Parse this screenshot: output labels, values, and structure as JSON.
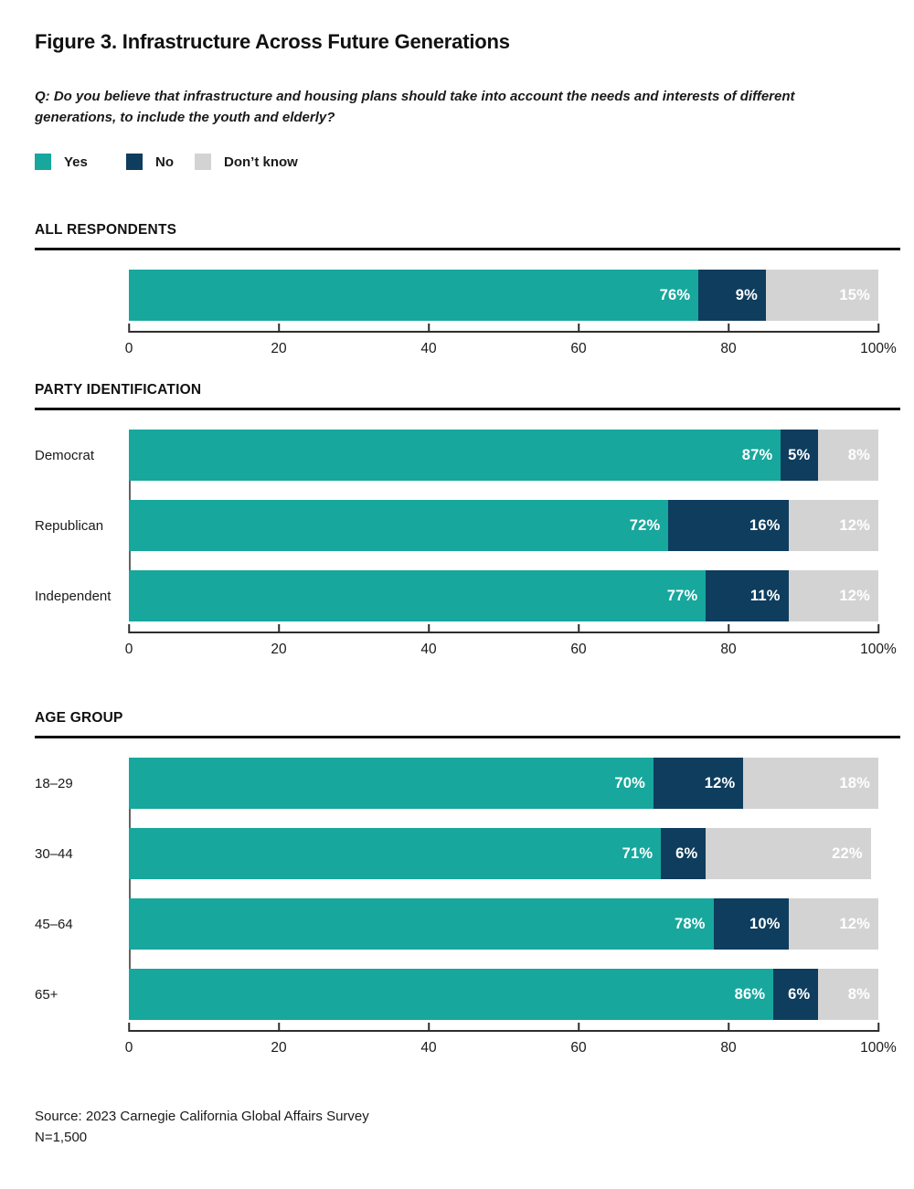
{
  "title": "Figure 3. Infrastructure Across Future Generations",
  "question": "Q: Do you believe that infrastructure and housing plans should take into account the needs and interests of different generations, to include the youth and elderly?",
  "colors": {
    "yes": "#17a79d",
    "no": "#0e3d5e",
    "dont_know": "#d3d3d3",
    "label_text": "#ffffff",
    "rule": "#111111",
    "baseline": "#2e2e2e",
    "axis_vline": "#636363"
  },
  "legend": {
    "items": [
      {
        "label": "Yes",
        "color_key": "yes"
      },
      {
        "label": "No",
        "color_key": "no"
      },
      {
        "label": "Don’t know",
        "color_key": "dont_know"
      }
    ]
  },
  "chart_data": [
    {
      "type": "bar",
      "orientation": "horizontal",
      "stacked": true,
      "title": "ALL RESPONDENTS",
      "categories": [
        ""
      ],
      "series": [
        {
          "name": "Yes",
          "color_key": "yes",
          "values": [
            76
          ]
        },
        {
          "name": "No",
          "color_key": "no",
          "values": [
            9
          ]
        },
        {
          "name": "Don’t know",
          "color_key": "dont_know",
          "values": [
            15
          ]
        }
      ],
      "xlim": [
        0,
        100
      ],
      "ticks": [
        {
          "pos": 0,
          "label": "0"
        },
        {
          "pos": 20,
          "label": "20"
        },
        {
          "pos": 40,
          "label": "40"
        },
        {
          "pos": 60,
          "label": "60"
        },
        {
          "pos": 80,
          "label": "80"
        },
        {
          "pos": 100,
          "label": "100%"
        }
      ],
      "grid": false,
      "value_suffix": "%"
    },
    {
      "type": "bar",
      "orientation": "horizontal",
      "stacked": true,
      "title": "PARTY IDENTIFICATION",
      "categories": [
        "Democrat",
        "Republican",
        "Independent"
      ],
      "series": [
        {
          "name": "Yes",
          "color_key": "yes",
          "values": [
            87,
            72,
            77
          ]
        },
        {
          "name": "No",
          "color_key": "no",
          "values": [
            5,
            16,
            11
          ]
        },
        {
          "name": "Don’t know",
          "color_key": "dont_know",
          "values": [
            8,
            12,
            12
          ]
        }
      ],
      "xlim": [
        0,
        100
      ],
      "ticks": [
        {
          "pos": 0,
          "label": "0"
        },
        {
          "pos": 20,
          "label": "20"
        },
        {
          "pos": 40,
          "label": "40"
        },
        {
          "pos": 60,
          "label": "60"
        },
        {
          "pos": 80,
          "label": "80"
        },
        {
          "pos": 100,
          "label": "100%"
        }
      ],
      "grid": false,
      "value_suffix": "%"
    },
    {
      "type": "bar",
      "orientation": "horizontal",
      "stacked": true,
      "title": "AGE GROUP",
      "categories": [
        "18–29",
        "30–44",
        "45–64",
        "65+"
      ],
      "series": [
        {
          "name": "Yes",
          "color_key": "yes",
          "values": [
            70,
            71,
            78,
            86
          ]
        },
        {
          "name": "No",
          "color_key": "no",
          "values": [
            12,
            6,
            10,
            6
          ]
        },
        {
          "name": "Don’t know",
          "color_key": "dont_know",
          "values": [
            18,
            22,
            12,
            8
          ]
        }
      ],
      "xlim": [
        0,
        100
      ],
      "ticks": [
        {
          "pos": 0,
          "label": "0"
        },
        {
          "pos": 20,
          "label": "20"
        },
        {
          "pos": 40,
          "label": "40"
        },
        {
          "pos": 60,
          "label": "60"
        },
        {
          "pos": 80,
          "label": "80"
        },
        {
          "pos": 100,
          "label": "100%"
        }
      ],
      "grid": false,
      "value_suffix": "%"
    }
  ],
  "source": {
    "line1": "Source: 2023 Carnegie California Global Affairs Survey",
    "line2": "N=1,500"
  }
}
